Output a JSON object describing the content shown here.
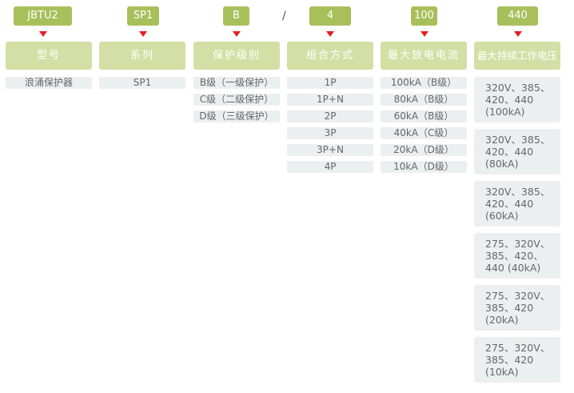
{
  "codes": [
    "JBTU2",
    "SP1",
    "B",
    "4",
    "100",
    "440"
  ],
  "separator": "/",
  "columns": [
    {
      "header": "型号",
      "rows": [
        "浪涌保护器"
      ]
    },
    {
      "header": "系列",
      "rows": [
        "SP1"
      ]
    },
    {
      "header": "保护级别",
      "rows": [
        "B级（一级保护）",
        "C级（二级保护）",
        "D级（三级保护）"
      ]
    },
    {
      "header": "组合方式",
      "rows": [
        "1P",
        "1P+N",
        "2P",
        "3P",
        "3P+N",
        "4P"
      ]
    },
    {
      "header": "最大放电电流",
      "rows": [
        "100kA（B级）",
        "80kA（B级）",
        "60kA（B级）",
        "40kA（C级）",
        "20kA（D级）",
        "10kA（D级）"
      ]
    },
    {
      "header": "最大持续工作电压",
      "rows": [
        "320V、385、\n420、440\n(100kA)",
        "320V、385、\n420、440\n(80kA)",
        "320V、385、\n420、440\n(60kA)",
        "275、320V、\n385、420、\n440 (40kA)",
        "275、320V、\n385、420\n(20kA)",
        "275、320V、\n385、420\n (10kA)"
      ]
    }
  ],
  "colors": {
    "badge": "#a8bf5a",
    "header": "#d3dfa4",
    "row": "#eceff0",
    "arrow": "#e61e25"
  }
}
